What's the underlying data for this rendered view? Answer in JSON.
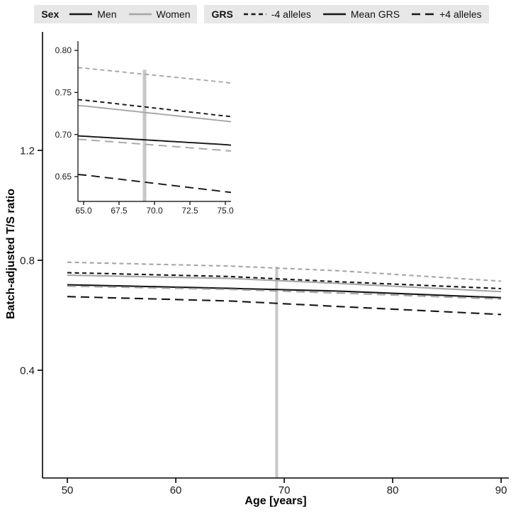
{
  "chart_data": {
    "type": "line",
    "title": "",
    "xlabel": "Age [years]",
    "ylabel": "Batch-adjusted T/S ratio",
    "legend_position": "top",
    "grid": false,
    "vline": {
      "x": 69.3,
      "y_top": 0.777,
      "color": "#c7c7c7"
    },
    "series": [
      {
        "name": "Women, -4 alleles",
        "sex": "Women",
        "grs": "-4 alleles",
        "color": "#a6a6a6",
        "dash": "short",
        "x": [
          50,
          65,
          75,
          90
        ],
        "y": [
          0.793,
          0.779,
          0.762,
          0.724
        ]
      },
      {
        "name": "Men, -4 alleles",
        "sex": "Men",
        "grs": "-4 alleles",
        "color": "#161616",
        "dash": "short",
        "x": [
          50,
          65,
          75,
          90
        ],
        "y": [
          0.755,
          0.741,
          0.722,
          0.697
        ]
      },
      {
        "name": "Women, Mean GRS",
        "sex": "Women",
        "grs": "Mean GRS",
        "color": "#a6a6a6",
        "dash": "solid",
        "x": [
          50,
          65,
          75,
          90
        ],
        "y": [
          0.746,
          0.734,
          0.716,
          0.686
        ]
      },
      {
        "name": "Men, Mean GRS",
        "sex": "Men",
        "grs": "Mean GRS",
        "color": "#161616",
        "dash": "solid",
        "x": [
          50,
          65,
          75,
          90
        ],
        "y": [
          0.711,
          0.698,
          0.688,
          0.664
        ]
      },
      {
        "name": "Women, +4 alleles",
        "sex": "Women",
        "grs": "+4 alleles",
        "color": "#a6a6a6",
        "dash": "long",
        "x": [
          50,
          65,
          75,
          90
        ],
        "y": [
          0.706,
          0.694,
          0.681,
          0.659
        ]
      },
      {
        "name": "Men, +4 alleles",
        "sex": "Men",
        "grs": "+4 alleles",
        "color": "#161616",
        "dash": "long",
        "x": [
          50,
          65,
          75,
          90
        ],
        "y": [
          0.668,
          0.652,
          0.632,
          0.603
        ]
      }
    ],
    "main_panel": {
      "xlim": [
        47.71,
        90.71
      ],
      "ylim": [
        0.008,
        1.631
      ],
      "xticks": [
        {
          "v": 50,
          "label": "50"
        },
        {
          "v": 60,
          "label": "60"
        },
        {
          "v": 70,
          "label": "70"
        },
        {
          "v": 80,
          "label": "80"
        },
        {
          "v": 90,
          "label": "90"
        }
      ],
      "yticks": [
        {
          "v": 0.4,
          "label": "0.4"
        },
        {
          "v": 0.8,
          "label": "0.8"
        },
        {
          "v": 1.2,
          "label": "1.2"
        }
      ]
    },
    "inset_panel": {
      "xlim": [
        64.6,
        75.4
      ],
      "ylim": [
        0.6205,
        0.811
      ],
      "xticks": [
        {
          "v": 65.0,
          "label": "65.0"
        },
        {
          "v": 67.5,
          "label": "67.5"
        },
        {
          "v": 70.0,
          "label": "70.0"
        },
        {
          "v": 72.5,
          "label": "72.5"
        },
        {
          "v": 75.0,
          "label": "75.0"
        }
      ],
      "yticks": [
        {
          "v": 0.65,
          "label": "0.65"
        },
        {
          "v": 0.7,
          "label": "0.70"
        },
        {
          "v": 0.75,
          "label": "0.75"
        },
        {
          "v": 0.8,
          "label": "0.80"
        }
      ]
    }
  },
  "legend": {
    "groups": [
      {
        "title": "Sex",
        "items": [
          {
            "label": "Men",
            "color": "#161616",
            "dash": "solid"
          },
          {
            "label": "Women",
            "color": "#a6a6a6",
            "dash": "solid"
          }
        ]
      },
      {
        "title": "GRS",
        "items": [
          {
            "label": "-4 alleles",
            "color": "#161616",
            "dash": "short"
          },
          {
            "label": "Mean GRS",
            "color": "#161616",
            "dash": "solid"
          },
          {
            "label": "+4 alleles",
            "color": "#161616",
            "dash": "long"
          }
        ]
      }
    ]
  }
}
